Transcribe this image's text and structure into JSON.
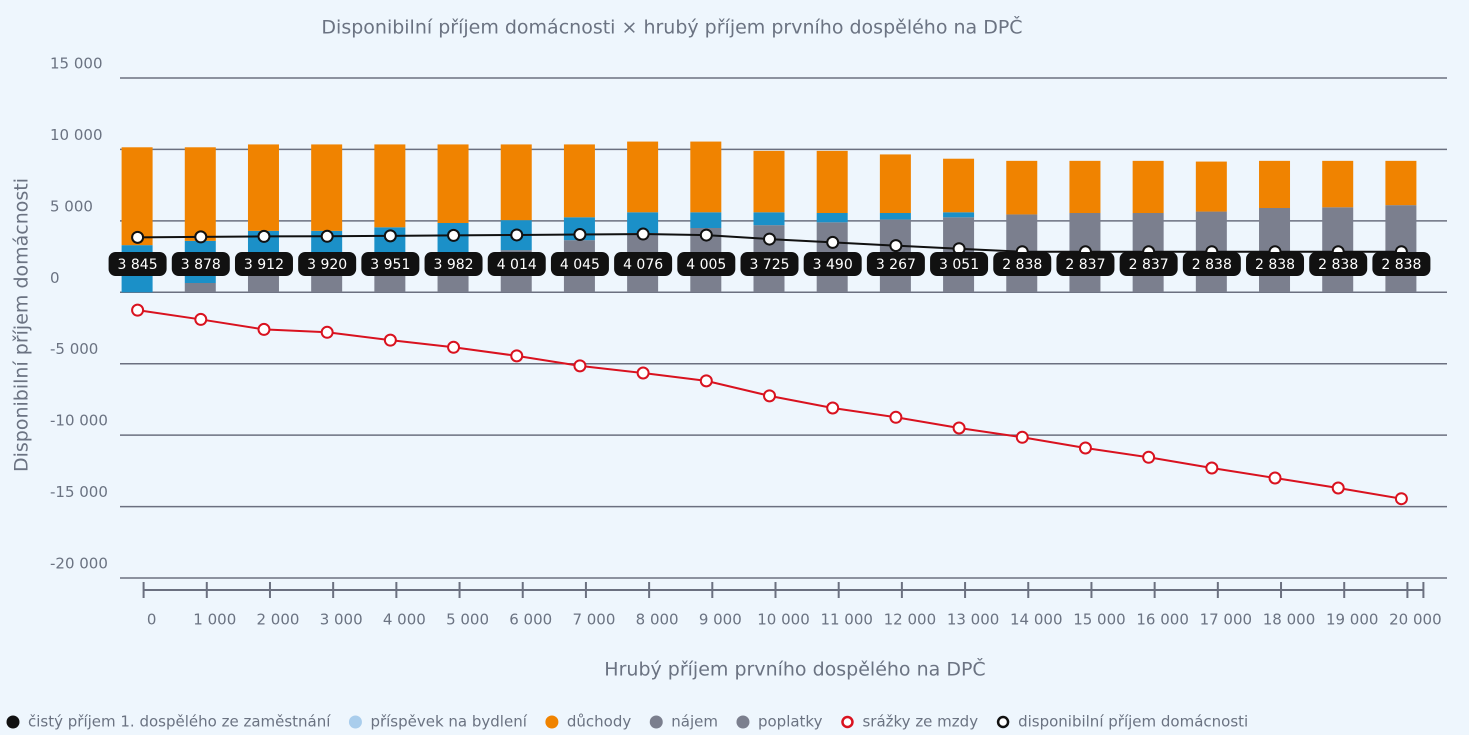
{
  "chart_data": {
    "type": "bar",
    "title": "Disponibilní příjem domácnosti × hrubý příjem prvního dospělého na DPČ",
    "x_label": "Hrubý příjem prvního dospělého na DPČ",
    "y_label": "Disponibilní příjem domácnosti",
    "categories": [
      "0",
      "1 000",
      "2 000",
      "3 000",
      "4 000",
      "5 000",
      "6 000",
      "7 000",
      "8 000",
      "9 000",
      "10 000",
      "11 000",
      "12 000",
      "13 000",
      "14 000",
      "15 000",
      "16 000",
      "17 000",
      "18 000",
      "19 000",
      "20 000"
    ],
    "ylim": [
      -20000,
      15000
    ],
    "yticks": [
      {
        "value": -20000,
        "label": "-20 000"
      },
      {
        "value": -15000,
        "label": "-15 000"
      },
      {
        "value": -10000,
        "label": "-10 000"
      },
      {
        "value": -5000,
        "label": "-5 000"
      },
      0,
      {
        "value": 5000,
        "label": "5 000"
      },
      {
        "value": 10000,
        "label": "10 000"
      },
      {
        "value": 15000,
        "label": "15 000"
      }
    ],
    "grid": true,
    "series": [
      {
        "name": "čistý příjem 1. dospělého ze zaměstnání",
        "color": "#111111",
        "bar_color": "#7b7f8e",
        "values": [
          0,
          650,
          1400,
          1900,
          2250,
          2600,
          2950,
          3650,
          4150,
          4500,
          4700,
          4900,
          5100,
          5250,
          5450,
          5550,
          5550,
          5650,
          5900,
          5950,
          6100
        ]
      },
      {
        "name": "příspěvek na bydlení",
        "color": "#a9cdec",
        "bar_color": "#1b90c8",
        "values": [
          3300,
          2950,
          2900,
          2400,
          2300,
          2250,
          2100,
          1600,
          1450,
          1100,
          900,
          650,
          450,
          350,
          0,
          0,
          0,
          0,
          0,
          0,
          0
        ]
      },
      {
        "name": "důchody",
        "color": "#f08300",
        "bar_color": "#f08300",
        "values": [
          6850,
          6550,
          6050,
          6050,
          5800,
          5500,
          5300,
          5100,
          4950,
          4950,
          4300,
          4350,
          4100,
          3750,
          3750,
          3650,
          3650,
          3500,
          3300,
          3250,
          3100
        ]
      },
      {
        "name": "nájem",
        "color": "#7b7f8e"
      },
      {
        "name": "poplatky",
        "color": "#7b7f8e"
      },
      {
        "name": "srážky ze mzdy",
        "color": "#d9121f",
        "kind": "line",
        "values": [
          -1250,
          -1900,
          -2600,
          -2800,
          -3350,
          -3850,
          -4450,
          -5150,
          -5650,
          -6200,
          -7250,
          -8100,
          -8750,
          -9500,
          -10150,
          -10900,
          -11550,
          -12300,
          -13000,
          -13700,
          -14450
        ]
      },
      {
        "name": "disponibilní příjem domácnosti",
        "color": "#111111",
        "kind": "line",
        "values": [
          3845,
          3878,
          3912,
          3920,
          3951,
          3982,
          4014,
          4045,
          4076,
          4005,
          3725,
          3490,
          3267,
          3051,
          2838,
          2837,
          2837,
          2838,
          2838,
          2838,
          2838
        ],
        "value_labels": [
          "3 845",
          "3 878",
          "3 912",
          "3 920",
          "3 951",
          "3 982",
          "4 014",
          "4 045",
          "4 076",
          "4 005",
          "3 725",
          "3 490",
          "3 267",
          "3 051",
          "2 838",
          "2 837",
          "2 837",
          "2 838",
          "2 838",
          "2 838",
          "2 838"
        ]
      }
    ]
  }
}
